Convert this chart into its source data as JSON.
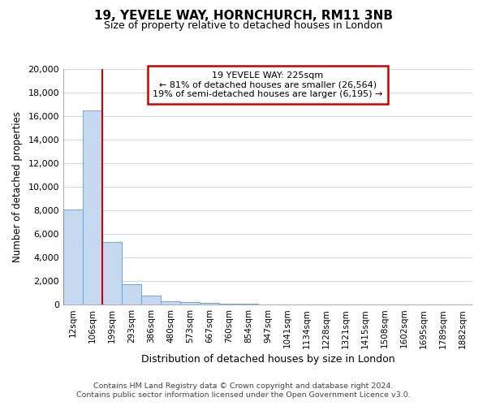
{
  "title1": "19, YEVELE WAY, HORNCHURCH, RM11 3NB",
  "title2": "Size of property relative to detached houses in London",
  "xlabel": "Distribution of detached houses by size in London",
  "ylabel": "Number of detached properties",
  "categories": [
    "12sqm",
    "106sqm",
    "199sqm",
    "293sqm",
    "386sqm",
    "480sqm",
    "573sqm",
    "667sqm",
    "760sqm",
    "854sqm",
    "947sqm",
    "1041sqm",
    "1134sqm",
    "1228sqm",
    "1321sqm",
    "1415sqm",
    "1508sqm",
    "1602sqm",
    "1695sqm",
    "1789sqm",
    "1882sqm"
  ],
  "values": [
    8100,
    16500,
    5300,
    1750,
    750,
    300,
    200,
    110,
    80,
    60,
    0,
    0,
    0,
    0,
    0,
    0,
    0,
    0,
    0,
    0,
    0
  ],
  "bar_color": "#c5d8f0",
  "bar_edge_color": "#6aaad4",
  "red_line_x": 1.5,
  "annotation_title": "19 YEVELE WAY: 225sqm",
  "annotation_line1": "← 81% of detached houses are smaller (26,564)",
  "annotation_line2": "19% of semi-detached houses are larger (6,195) →",
  "annotation_box_color": "#ffffff",
  "annotation_box_edge_color": "#cc0000",
  "red_line_color": "#cc0000",
  "ylim": [
    0,
    20000
  ],
  "yticks": [
    0,
    2000,
    4000,
    6000,
    8000,
    10000,
    12000,
    14000,
    16000,
    18000,
    20000
  ],
  "footer1": "Contains HM Land Registry data © Crown copyright and database right 2024.",
  "footer2": "Contains public sector information licensed under the Open Government Licence v3.0.",
  "bg_color": "#ffffff",
  "plot_bg_color": "#ffffff",
  "grid_color": "#d0d8e8"
}
